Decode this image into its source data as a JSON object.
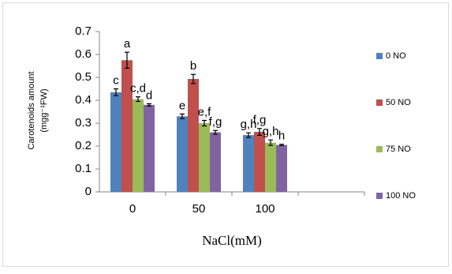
{
  "chart_data": {
    "type": "bar",
    "y_label": [
      "Carotenoids amount",
      "(mgg⁻¹FW)"
    ],
    "x_label": "NaCl(mM)",
    "categories": [
      "0",
      "50",
      "100",
      null
    ],
    "ylim": [
      0,
      0.7
    ],
    "yticks": [
      0,
      0.1,
      0.2,
      0.3,
      0.4,
      0.5,
      0.6,
      0.7
    ],
    "grid": false,
    "legend": "right",
    "series": [
      {
        "name": "0 NO",
        "color": "#4f81bd",
        "values": [
          0.435,
          0.33,
          0.248,
          null
        ],
        "errors": [
          0.015,
          0.01,
          0.01,
          null
        ],
        "letters": [
          "c",
          "e",
          "g,h",
          null
        ]
      },
      {
        "name": "50 NO",
        "color": "#c0504d",
        "values": [
          0.575,
          0.493,
          0.262,
          null
        ],
        "errors": [
          0.035,
          0.02,
          0.015,
          null
        ],
        "letters": [
          "a",
          "b",
          "f,g",
          null
        ]
      },
      {
        "name": "75 NO",
        "color": "#9bbb59",
        "values": [
          0.405,
          0.3,
          0.215,
          null
        ],
        "errors": [
          0.01,
          0.012,
          0.012,
          null
        ],
        "letters": [
          "c,d",
          "e,f",
          "g,h",
          null
        ]
      },
      {
        "name": "100 NO",
        "color": "#8064a2",
        "values": [
          0.38,
          0.26,
          0.205,
          null
        ],
        "errors": [
          0.005,
          0.008,
          0.003,
          null
        ],
        "letters": [
          "d",
          "f,g",
          "h",
          null
        ]
      }
    ]
  }
}
